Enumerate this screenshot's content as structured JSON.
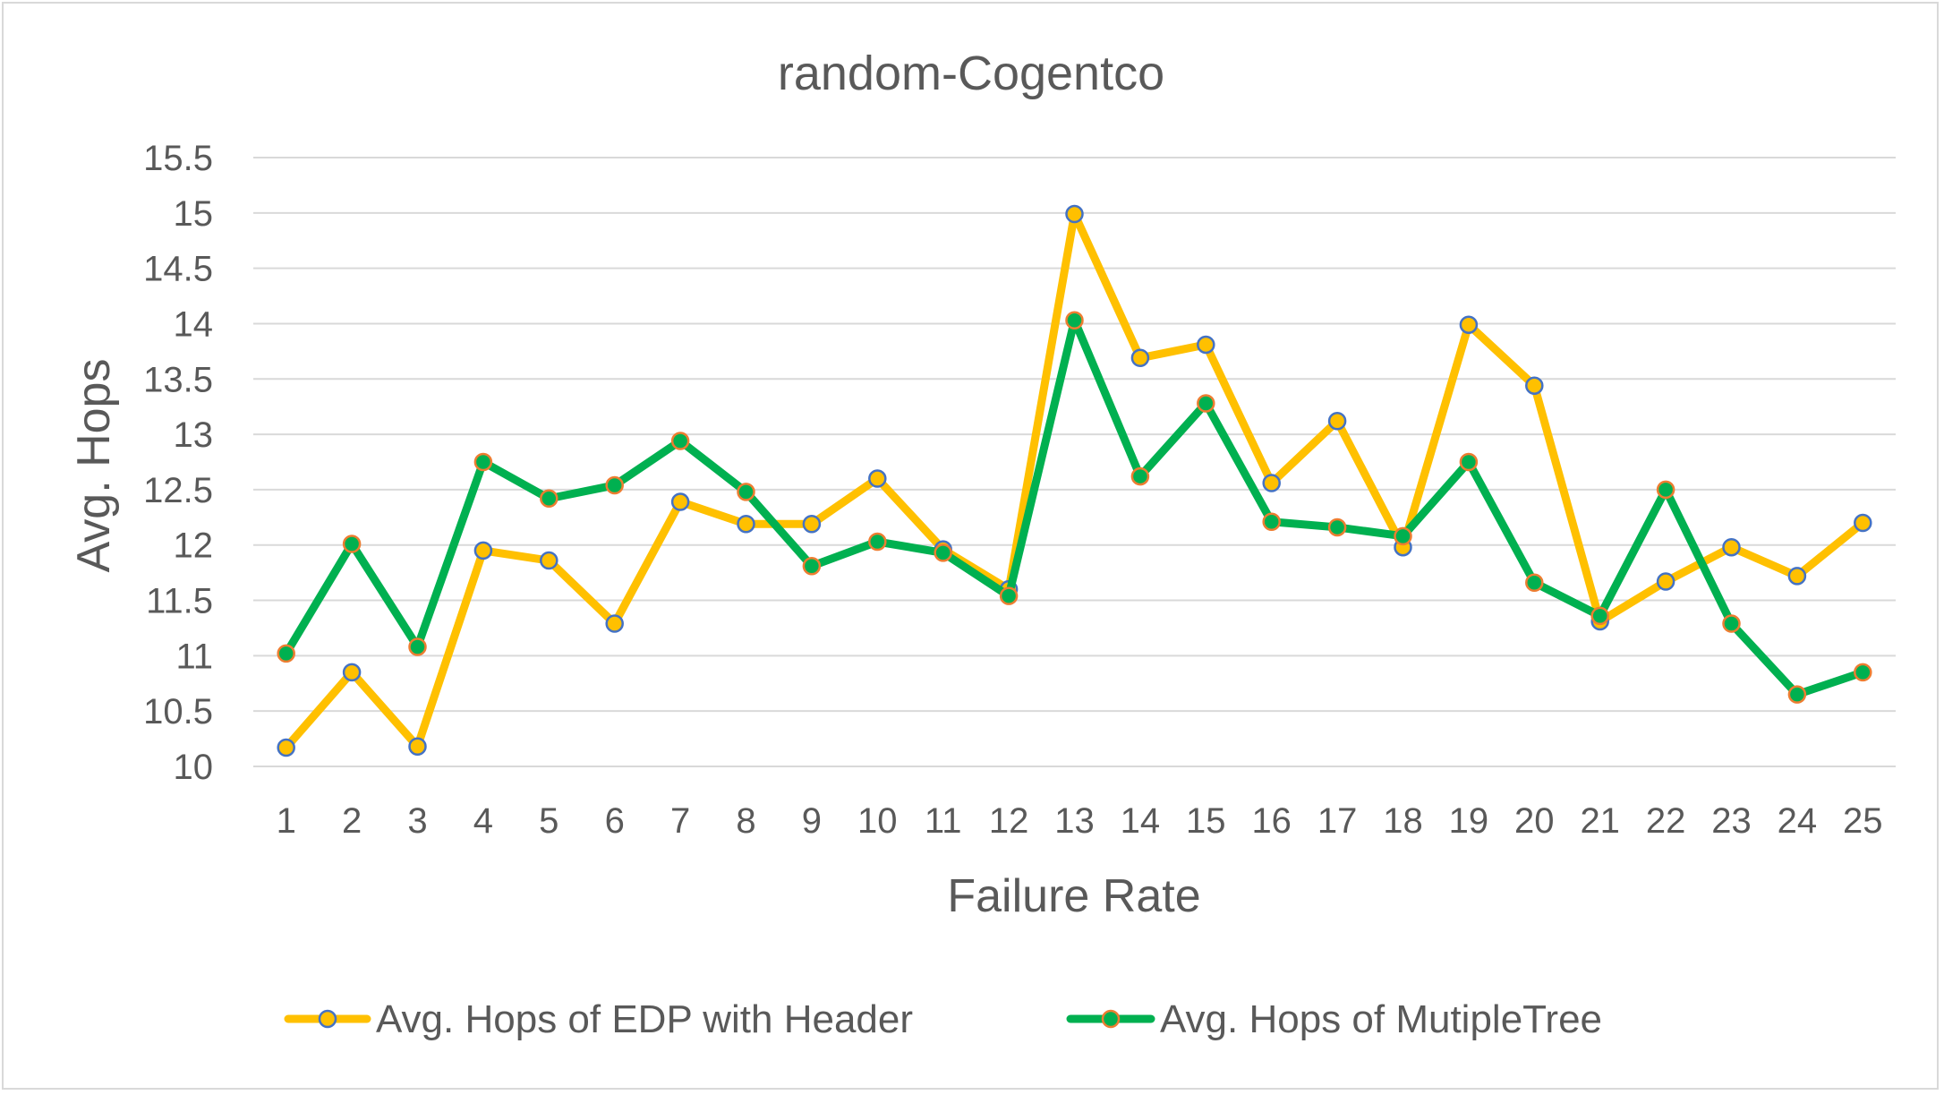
{
  "chart_data": {
    "type": "line",
    "title": "random-Cogentco",
    "xlabel": "Failure Rate",
    "ylabel": "Avg. Hops",
    "x": [
      1,
      2,
      3,
      4,
      5,
      6,
      7,
      8,
      9,
      10,
      11,
      12,
      13,
      14,
      15,
      16,
      17,
      18,
      19,
      20,
      21,
      22,
      23,
      24,
      25
    ],
    "ylim": [
      10,
      15.5
    ],
    "yticks": [
      10,
      10.5,
      11,
      11.5,
      12,
      12.5,
      13,
      13.5,
      14,
      14.5,
      15,
      15.5
    ],
    "ytick_labels": [
      "10",
      "10.5",
      "11",
      "11.5",
      "12",
      "12.5",
      "13",
      "13.5",
      "14",
      "14.5",
      "15",
      "15.5"
    ],
    "grid": "horizontal",
    "legend_position": "bottom",
    "series": [
      {
        "name": "Avg. Hops of EDP with Header",
        "color": "#FFC000",
        "marker_fill": "#FFC000",
        "marker_edge": "#4472C4",
        "values": [
          10.17,
          10.85,
          10.18,
          11.95,
          11.86,
          11.29,
          12.39,
          12.19,
          12.19,
          12.6,
          11.96,
          11.6,
          14.99,
          13.69,
          13.81,
          12.56,
          13.12,
          11.98,
          13.99,
          13.44,
          11.31,
          11.67,
          11.98,
          11.72,
          12.2
        ]
      },
      {
        "name": "Avg. Hops of MutipleTree",
        "color": "#00B050",
        "marker_fill": "#00B050",
        "marker_edge": "#ED7D31",
        "values": [
          11.02,
          12.01,
          11.08,
          12.75,
          12.42,
          12.54,
          12.94,
          12.48,
          11.81,
          12.03,
          11.93,
          11.54,
          14.03,
          12.62,
          13.28,
          12.21,
          12.16,
          12.08,
          12.75,
          11.66,
          11.36,
          12.5,
          11.29,
          10.65,
          10.85
        ]
      }
    ]
  }
}
